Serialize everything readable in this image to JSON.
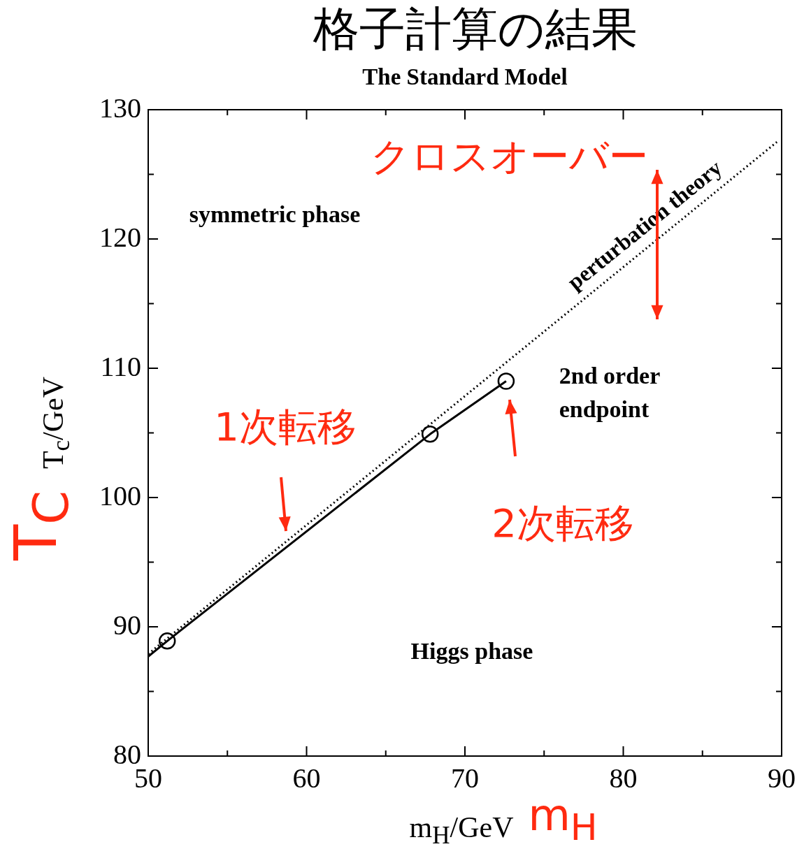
{
  "chart_data": {
    "type": "line",
    "title": "格子計算の結果",
    "subtitle": "The Standard Model",
    "xlabel": "m$_{H}$/GeV",
    "ylabel": "T$_{c}$/GeV",
    "xlim": [
      50,
      90
    ],
    "ylim": [
      80,
      130
    ],
    "xticks": [
      50,
      {
        "value": 55,
        "label": null
      },
      60,
      {
        "value": 65,
        "label": null
      },
      70,
      {
        "value": 75,
        "label": null
      },
      80,
      {
        "value": 85,
        "label": null
      },
      90
    ],
    "yticks": [
      80,
      {
        "value": 85,
        "label": null
      },
      90,
      {
        "value": 95,
        "label": null
      },
      100,
      {
        "value": 105,
        "label": null
      },
      110,
      {
        "value": 115,
        "label": null
      },
      120,
      {
        "value": 125,
        "label": null
      },
      130
    ],
    "grid": false,
    "legend": false,
    "series": [
      {
        "color": "#000000",
        "marker": "none",
        "line_style": "dotted",
        "x": [
          50,
          89.7
        ],
        "values": [
          87.9,
          127.5
        ]
      },
      {
        "color": "#000000",
        "marker": "none",
        "line_style": "solid",
        "x": [
          50,
          51.2,
          67.8,
          72.6
        ],
        "values": [
          87.7,
          88.9,
          104.9,
          109.0
        ]
      },
      {
        "type": "scatter",
        "color": "#000000",
        "marker": "circle",
        "x": [
          51.2,
          67.8,
          72.6
        ],
        "values": [
          88.9,
          104.9,
          109.0
        ]
      }
    ],
    "annotations": [
      "symmetric phase",
      "perturbation theory",
      "2nd order\nendpoint",
      "Higgs phase",
      "クロスオーバー",
      "1次転移",
      "2次転移",
      "m$_{H}$",
      "T$_{C}$"
    ]
  }
}
